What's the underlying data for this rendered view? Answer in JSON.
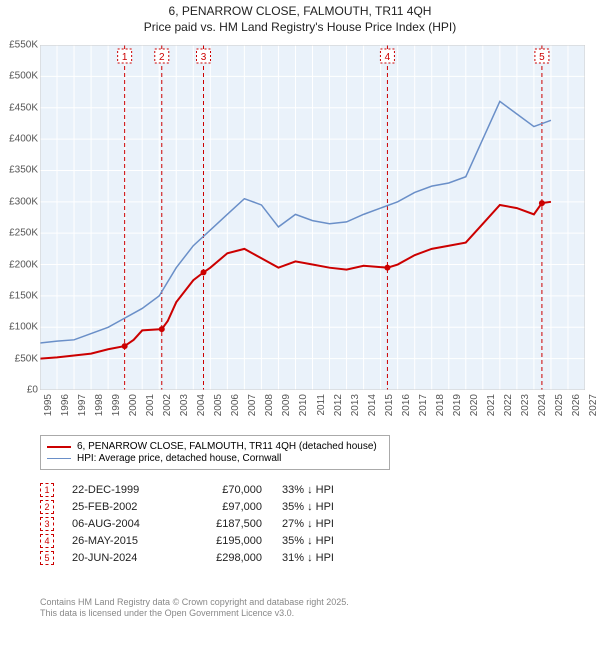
{
  "title_line1": "6, PENARROW CLOSE, FALMOUTH, TR11 4QH",
  "title_line2": "Price paid vs. HM Land Registry's House Price Index (HPI)",
  "chart": {
    "type": "line",
    "background_color": "#eaf2fa",
    "grid_color": "#ffffff",
    "xlim": [
      1995,
      2027
    ],
    "ylim": [
      0,
      550000
    ],
    "ytick_step": 50000,
    "yticks": [
      "£0",
      "£50K",
      "£100K",
      "£150K",
      "£200K",
      "£250K",
      "£300K",
      "£350K",
      "£400K",
      "£450K",
      "£500K",
      "£550K"
    ],
    "xticks": [
      "1995",
      "1996",
      "1997",
      "1998",
      "1999",
      "2000",
      "2001",
      "2002",
      "2003",
      "2004",
      "2005",
      "2006",
      "2007",
      "2008",
      "2009",
      "2010",
      "2011",
      "2012",
      "2013",
      "2014",
      "2015",
      "2016",
      "2017",
      "2018",
      "2019",
      "2020",
      "2021",
      "2022",
      "2023",
      "2024",
      "2025",
      "2026",
      "2027"
    ],
    "series": [
      {
        "name": "6, PENARROW CLOSE, FALMOUTH, TR11 4QH (detached house)",
        "color": "#cc0000",
        "line_width": 2,
        "data": [
          [
            1995,
            50000
          ],
          [
            1996,
            52000
          ],
          [
            1997,
            55000
          ],
          [
            1998,
            58000
          ],
          [
            1999,
            65000
          ],
          [
            1999.97,
            70000
          ],
          [
            2000.5,
            80000
          ],
          [
            2001,
            95000
          ],
          [
            2002.15,
            97000
          ],
          [
            2002.5,
            110000
          ],
          [
            2003,
            140000
          ],
          [
            2004,
            175000
          ],
          [
            2004.6,
            187500
          ],
          [
            2005,
            195000
          ],
          [
            2006,
            218000
          ],
          [
            2007,
            225000
          ],
          [
            2008,
            210000
          ],
          [
            2009,
            195000
          ],
          [
            2010,
            205000
          ],
          [
            2011,
            200000
          ],
          [
            2012,
            195000
          ],
          [
            2013,
            192000
          ],
          [
            2014,
            198000
          ],
          [
            2015.4,
            195000
          ],
          [
            2016,
            200000
          ],
          [
            2017,
            215000
          ],
          [
            2018,
            225000
          ],
          [
            2019,
            230000
          ],
          [
            2020,
            235000
          ],
          [
            2021,
            265000
          ],
          [
            2022,
            295000
          ],
          [
            2023,
            290000
          ],
          [
            2024,
            280000
          ],
          [
            2024.47,
            298000
          ],
          [
            2025,
            300000
          ]
        ]
      },
      {
        "name": "HPI: Average price, detached house, Cornwall",
        "color": "#6a8fc8",
        "line_width": 1.5,
        "data": [
          [
            1995,
            75000
          ],
          [
            1996,
            78000
          ],
          [
            1997,
            80000
          ],
          [
            1998,
            90000
          ],
          [
            1999,
            100000
          ],
          [
            2000,
            115000
          ],
          [
            2001,
            130000
          ],
          [
            2002,
            150000
          ],
          [
            2003,
            195000
          ],
          [
            2004,
            230000
          ],
          [
            2005,
            255000
          ],
          [
            2006,
            280000
          ],
          [
            2007,
            305000
          ],
          [
            2008,
            295000
          ],
          [
            2009,
            260000
          ],
          [
            2010,
            280000
          ],
          [
            2011,
            270000
          ],
          [
            2012,
            265000
          ],
          [
            2013,
            268000
          ],
          [
            2014,
            280000
          ],
          [
            2015,
            290000
          ],
          [
            2016,
            300000
          ],
          [
            2017,
            315000
          ],
          [
            2018,
            325000
          ],
          [
            2019,
            330000
          ],
          [
            2020,
            340000
          ],
          [
            2021,
            400000
          ],
          [
            2022,
            460000
          ],
          [
            2023,
            440000
          ],
          [
            2024,
            420000
          ],
          [
            2025,
            430000
          ]
        ]
      }
    ],
    "sale_markers": [
      {
        "num": "1",
        "year": 1999.97
      },
      {
        "num": "2",
        "year": 2002.15
      },
      {
        "num": "3",
        "year": 2004.6
      },
      {
        "num": "4",
        "year": 2015.4
      },
      {
        "num": "5",
        "year": 2024.47
      }
    ],
    "marker_color": "#cc0000",
    "marker_dash": "4,3"
  },
  "legend": [
    {
      "color": "#cc0000",
      "width": 2,
      "label": "6, PENARROW CLOSE, FALMOUTH, TR11 4QH (detached house)"
    },
    {
      "color": "#6a8fc8",
      "width": 1.5,
      "label": "HPI: Average price, detached house, Cornwall"
    }
  ],
  "sales_table": [
    {
      "num": "1",
      "date": "22-DEC-1999",
      "price": "£70,000",
      "pct": "33% ↓ HPI"
    },
    {
      "num": "2",
      "date": "25-FEB-2002",
      "price": "£97,000",
      "pct": "35% ↓ HPI"
    },
    {
      "num": "3",
      "date": "06-AUG-2004",
      "price": "£187,500",
      "pct": "27% ↓ HPI"
    },
    {
      "num": "4",
      "date": "26-MAY-2015",
      "price": "£195,000",
      "pct": "35% ↓ HPI"
    },
    {
      "num": "5",
      "date": "20-JUN-2024",
      "price": "£298,000",
      "pct": "31% ↓ HPI"
    }
  ],
  "footnote_line1": "Contains HM Land Registry data © Crown copyright and database right 2025.",
  "footnote_line2": "This data is licensed under the Open Government Licence v3.0."
}
